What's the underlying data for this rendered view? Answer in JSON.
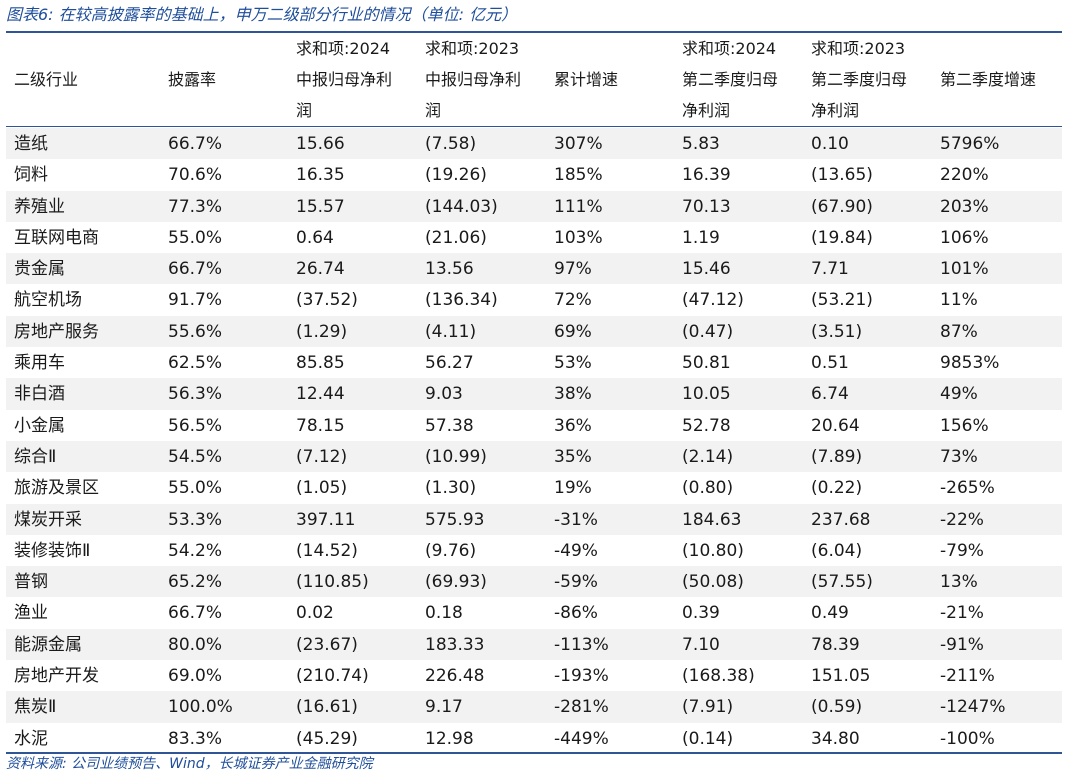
{
  "title": "图表6:  在较高披露率的基础上，申万二级部分行业的情况（单位:  亿元）",
  "table": {
    "headers": [
      "二级行业",
      "披露率",
      "求和项:2024\n中报归母净利\n润",
      "求和项:2023\n中报归母净利\n润",
      "累计增速",
      "求和项:2024\n第二季度归母\n净利润",
      "求和项:2023\n第二季度归母\n净利润",
      "第二季度增速"
    ],
    "rows": [
      [
        "造纸",
        "66.7%",
        "15.66",
        "(7.58)",
        "307%",
        "5.83",
        "0.10",
        "5796%"
      ],
      [
        "饲料",
        "70.6%",
        "16.35",
        "(19.26)",
        "185%",
        "16.39",
        "(13.65)",
        "220%"
      ],
      [
        "养殖业",
        "77.3%",
        "15.57",
        "(144.03)",
        "111%",
        "70.13",
        "(67.90)",
        "203%"
      ],
      [
        "互联网电商",
        "55.0%",
        "0.64",
        "(21.06)",
        "103%",
        "1.19",
        "(19.84)",
        "106%"
      ],
      [
        "贵金属",
        "66.7%",
        "26.74",
        "13.56",
        "97%",
        "15.46",
        "7.71",
        "101%"
      ],
      [
        "航空机场",
        "91.7%",
        "(37.52)",
        "(136.34)",
        "72%",
        "(47.12)",
        "(53.21)",
        "11%"
      ],
      [
        "房地产服务",
        "55.6%",
        "(1.29)",
        "(4.11)",
        "69%",
        "(0.47)",
        "(3.51)",
        "87%"
      ],
      [
        "乘用车",
        "62.5%",
        "85.85",
        "56.27",
        "53%",
        "50.81",
        "0.51",
        "9853%"
      ],
      [
        "非白酒",
        "56.3%",
        "12.44",
        "9.03",
        "38%",
        "10.05",
        "6.74",
        "49%"
      ],
      [
        "小金属",
        "56.5%",
        "78.15",
        "57.38",
        "36%",
        "52.78",
        "20.64",
        "156%"
      ],
      [
        "综合Ⅱ",
        "54.5%",
        "(7.12)",
        "(10.99)",
        "35%",
        "(2.14)",
        "(7.89)",
        "73%"
      ],
      [
        "旅游及景区",
        "55.0%",
        "(1.05)",
        "(1.30)",
        "19%",
        "(0.80)",
        "(0.22)",
        "-265%"
      ],
      [
        "煤炭开采",
        "53.3%",
        "397.11",
        "575.93",
        "-31%",
        "184.63",
        "237.68",
        "-22%"
      ],
      [
        "装修装饰Ⅱ",
        "54.2%",
        "(14.52)",
        "(9.76)",
        "-49%",
        "(10.80)",
        "(6.04)",
        "-79%"
      ],
      [
        "普钢",
        "65.2%",
        "(110.85)",
        "(69.93)",
        "-59%",
        "(50.08)",
        "(57.55)",
        "13%"
      ],
      [
        "渔业",
        "66.7%",
        "0.02",
        "0.18",
        "-86%",
        "0.39",
        "0.49",
        "-21%"
      ],
      [
        "能源金属",
        "80.0%",
        "(23.67)",
        "183.33",
        "-113%",
        "7.10",
        "78.39",
        "-91%"
      ],
      [
        "房地产开发",
        "69.0%",
        "(210.74)",
        "226.48",
        "-193%",
        "(168.38)",
        "151.05",
        "-211%"
      ],
      [
        "焦炭Ⅱ",
        "100.0%",
        "(16.61)",
        "9.17",
        "-281%",
        "(7.91)",
        "(0.59)",
        "-1247%"
      ],
      [
        "水泥",
        "83.3%",
        "(45.29)",
        "12.98",
        "-449%",
        "(0.14)",
        "34.80",
        "-100%"
      ]
    ]
  },
  "source": "资料来源:  公司业绩预告、Wind，长城证券产业金融研究院"
}
